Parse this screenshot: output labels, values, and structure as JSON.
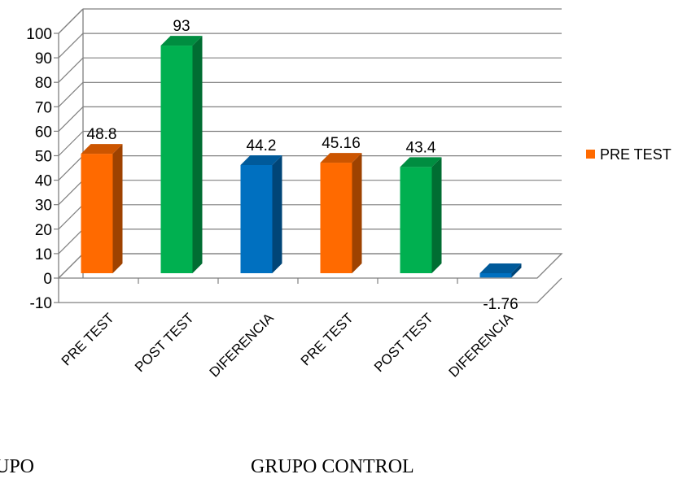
{
  "chart_data": {
    "type": "bar",
    "categories": [
      "PRE TEST",
      "POST TEST",
      "DIFERENCIA",
      "PRE TEST",
      "POST TEST",
      "DIFERENCIA"
    ],
    "values": [
      48.8,
      93,
      44.2,
      45.16,
      43.4,
      -1.76
    ],
    "data_labels": [
      "48.8",
      "93",
      "44.2",
      "45.16",
      "43.4",
      "-1.76"
    ],
    "bar_colors": [
      "#ff6a00",
      "#00b050",
      "#0070c0",
      "#ff6a00",
      "#00b050",
      "#0070c0"
    ],
    "ylim": [
      -10,
      100
    ],
    "y_ticks": [
      -10,
      0,
      10,
      20,
      30,
      40,
      50,
      60,
      70,
      80,
      90,
      100
    ],
    "grid": true,
    "three_d": true,
    "legend": {
      "placement": "right",
      "entries": [
        {
          "name": "PRE TEST",
          "color": "#ff6a00"
        }
      ]
    },
    "title": "",
    "xlabel": "",
    "ylabel": ""
  },
  "group_labels": {
    "left": "UPO",
    "right": "GRUPO CONTROL"
  }
}
